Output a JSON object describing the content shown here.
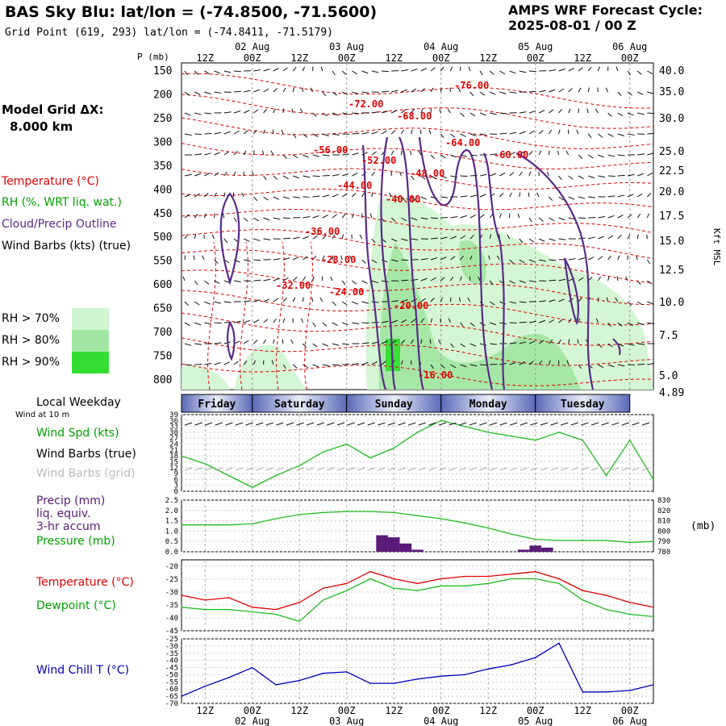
{
  "header": {
    "title": "BAS Sky Blu:  lat/lon = (-74.8500, -71.5600)",
    "grid_point": "Grid Point (619, 293) lat/lon = (-74.8411, -71.5179)",
    "cycle_label": "AMPS WRF Forecast Cycle:",
    "cycle_value": "2025-08-01 / 00  Z"
  },
  "left_panel": {
    "model_grid_label": "Model Grid ΔX:",
    "model_grid_value": "8.000 km",
    "legend_temperature": "Temperature (°C)",
    "legend_rh": "RH (%, WRT liq. wat.)",
    "legend_cloud": "Cloud/Precip Outline",
    "legend_wind": "Wind Barbs (kts) (true)",
    "rh_70": "RH > 70%",
    "rh_80": "RH > 80%",
    "rh_90": "RH > 90%",
    "local_weekday": "Local Weekday",
    "wind_at_10m": "Wind at 10 m",
    "wind_spd": "Wind Spd (kts)",
    "wind_barbs_true": "Wind Barbs (true)",
    "wind_barbs_grid": "Wind Barbs (grid)",
    "precip": "Precip (mm)",
    "precip2": "liq. equiv.",
    "precip3": "3-hr accum",
    "pressure": "Pressure (mb)",
    "temperature": "Temperature (°C)",
    "dewpoint": "Dewpoint (°C)",
    "wind_chill": "Wind Chill T (°C)"
  },
  "colors": {
    "temperature": "#e00000",
    "rh": "#00a000",
    "cloud": "#5a2a8a",
    "wind_grid": "#aaaaaa",
    "rh70": "#d2f5d2",
    "rh80": "#a3e6a3",
    "rh90": "#33dd33",
    "pressure": "#22bb22",
    "precip": "#5a1a7a",
    "windchill": "#0000bb",
    "day_band": "#8a9ad0"
  },
  "time_axis": {
    "top_ticks": [
      "12Z",
      "00Z",
      "12Z",
      "00Z",
      "12Z",
      "00Z",
      "12Z",
      "00Z",
      "12Z",
      "00Z"
    ],
    "top_dates": [
      "02 Aug",
      "03 Aug",
      "04 Aug",
      "05 Aug",
      "06 Aug"
    ],
    "bottom_ticks": [
      "12Z",
      "00Z",
      "12Z",
      "00Z",
      "12Z",
      "00Z",
      "12Z",
      "00Z",
      "12Z",
      "00Z"
    ],
    "bottom_dates": [
      "02 Aug",
      "03 Aug",
      "04 Aug",
      "05 Aug",
      "06 Aug"
    ],
    "weekdays": [
      "Friday",
      "Saturday",
      "Sunday",
      "Monday",
      "Tuesday"
    ]
  },
  "chart_data": [
    {
      "type": "heatmap",
      "name": "cross-section",
      "y_axis_label": "P (mb)",
      "pressure_levels": [
        150,
        200,
        250,
        300,
        350,
        400,
        450,
        500,
        550,
        600,
        650,
        700,
        750,
        800
      ],
      "right_axis_label": "Kft MSL",
      "height_ticks": [
        "40.0",
        "35.0",
        "30.0",
        "25.0",
        "22.5",
        "20.0",
        "17.5",
        "15.0",
        "12.5",
        "10.0",
        "7.5",
        "5.0",
        "4.89"
      ],
      "temperature_contour_labels": [
        "-76.00",
        "-72.00",
        "-68.00",
        "-64.00",
        "-60.00",
        "-56.00",
        "-52.00",
        "-48.00",
        "-44.00",
        "-40.00",
        "-36.00",
        "-28.00",
        "-24.00",
        "-32.00",
        "-20.00",
        "-16.00"
      ]
    },
    {
      "type": "line",
      "name": "wind speed",
      "yticks": [
        "39",
        "36",
        "33",
        "30",
        "27",
        "24",
        "21",
        "18",
        "15",
        "12",
        "9",
        "6",
        "3",
        "0"
      ],
      "ylim": [
        0,
        39
      ],
      "x_hours": [
        0,
        6,
        12,
        18,
        24,
        30,
        36,
        42,
        48,
        54,
        60,
        66,
        72,
        78,
        84,
        90,
        96,
        102,
        108,
        114,
        120
      ],
      "values": [
        18,
        14,
        8,
        2,
        8,
        13,
        20,
        24,
        17,
        22,
        30,
        36,
        33,
        30,
        28,
        26,
        30,
        26,
        8,
        26,
        6
      ]
    },
    {
      "type": "line",
      "name": "pressure + precip",
      "left_ticks": [
        "2.5",
        "2.0",
        "1.5",
        "1.0",
        "0.5",
        "0.0"
      ],
      "right_ticks": [
        "830",
        "820",
        "810",
        "800",
        "790",
        "780"
      ],
      "right_unit": "(mb)",
      "x_hours": [
        0,
        6,
        12,
        18,
        24,
        30,
        36,
        42,
        48,
        54,
        60,
        66,
        72,
        78,
        84,
        90,
        96,
        102,
        108,
        114,
        120
      ],
      "pressure": [
        806,
        806,
        806,
        807,
        812,
        816,
        818,
        819,
        819,
        818,
        815,
        812,
        808,
        803,
        797,
        792,
        791,
        791,
        791,
        789,
        790
      ],
      "precip_bars": [
        {
          "hour": 51,
          "value": 0.8
        },
        {
          "hour": 54,
          "value": 0.7
        },
        {
          "hour": 57,
          "value": 0.4
        },
        {
          "hour": 60,
          "value": 0.1
        },
        {
          "hour": 87,
          "value": 0.1
        },
        {
          "hour": 90,
          "value": 0.3
        },
        {
          "hour": 93,
          "value": 0.2
        }
      ]
    },
    {
      "type": "line",
      "name": "temperature",
      "yticks": [
        "-20",
        "-25",
        "-30",
        "-35",
        "-40",
        "-45"
      ],
      "ylim": [
        -45,
        -15
      ],
      "x_hours": [
        0,
        6,
        12,
        18,
        24,
        30,
        36,
        42,
        48,
        54,
        60,
        66,
        72,
        78,
        84,
        90,
        96,
        102,
        108,
        114,
        120
      ],
      "temperature": [
        -30,
        -32,
        -31,
        -35,
        -36,
        -33,
        -27,
        -25,
        -20,
        -23,
        -25,
        -23,
        -22,
        -22,
        -21,
        -20,
        -23,
        -28,
        -30,
        -33,
        -35
      ],
      "dewpoint": [
        -35,
        -36,
        -36,
        -37,
        -38,
        -41,
        -32,
        -28,
        -23,
        -27,
        -28,
        -26,
        -26,
        -25,
        -23,
        -23,
        -25,
        -32,
        -36,
        -38,
        -39
      ]
    },
    {
      "type": "line",
      "name": "wind chill",
      "yticks": [
        "-25",
        "-30",
        "-35",
        "-40",
        "-45",
        "-50",
        "-55",
        "-60",
        "-65",
        "-70"
      ],
      "ylim": [
        -70,
        -25
      ],
      "x_hours": [
        0,
        6,
        12,
        18,
        24,
        30,
        36,
        42,
        48,
        54,
        60,
        66,
        72,
        78,
        84,
        90,
        96,
        102,
        108,
        114,
        120
      ],
      "values": [
        -65,
        -58,
        -52,
        -45,
        -57,
        -54,
        -49,
        -48,
        -56,
        -56,
        -53,
        -51,
        -50,
        -46,
        -43,
        -38,
        -28,
        -62,
        -62,
        -61,
        -57
      ]
    }
  ]
}
